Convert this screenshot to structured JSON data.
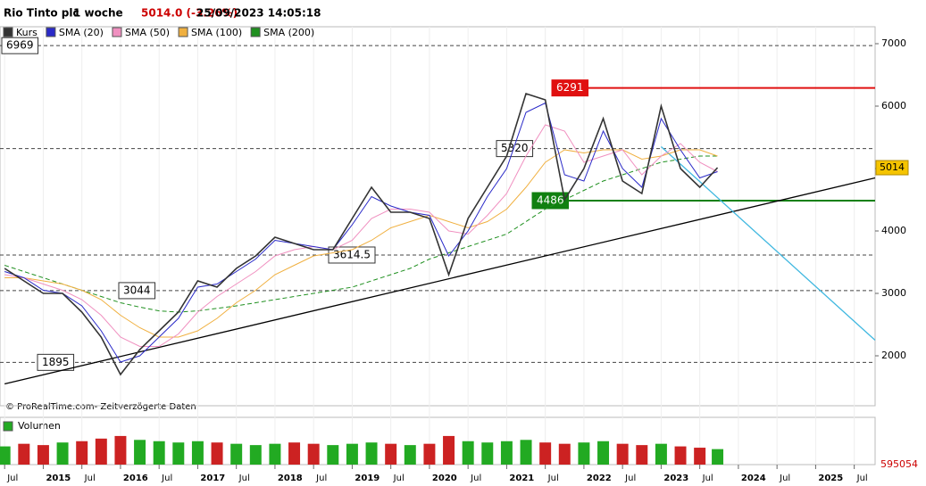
{
  "chart_data": {
    "type": "line",
    "title": "Rio Tinto plc",
    "period": "1 woche",
    "last_change": "5014.0 (-3.26%)",
    "timestamp": "25/09/2023 14:05:18",
    "credit": "© ProRealTime.com- Zeitverzögerte Daten",
    "volume_title": "Volumen",
    "x": [
      2014.5,
      2014.75,
      2015.0,
      2015.25,
      2015.5,
      2015.75,
      2016.0,
      2016.25,
      2016.5,
      2016.75,
      2017.0,
      2017.25,
      2017.5,
      2017.75,
      2018.0,
      2018.25,
      2018.5,
      2018.75,
      2019.0,
      2019.25,
      2019.5,
      2019.75,
      2020.0,
      2020.25,
      2020.5,
      2020.75,
      2021.0,
      2021.25,
      2021.5,
      2021.75,
      2022.0,
      2022.25,
      2022.5,
      2022.75,
      2023.0,
      2023.25,
      2023.5,
      2023.73
    ],
    "series": [
      {
        "name": "Kurs",
        "color": "#333333",
        "values": [
          3400,
          3200,
          3000,
          3000,
          2700,
          2300,
          1700,
          2100,
          2400,
          2700,
          3200,
          3100,
          3400,
          3600,
          3900,
          3800,
          3700,
          3700,
          4200,
          4700,
          4300,
          4300,
          4200,
          3300,
          4200,
          4700,
          5200,
          6200,
          6100,
          4500,
          5000,
          5800,
          4800,
          4600,
          6000,
          5000,
          4700,
          5014
        ]
      },
      {
        "name": "SMA (20)",
        "color": "#2a2ac8",
        "values": [
          3350,
          3250,
          3050,
          3000,
          2800,
          2400,
          1900,
          2000,
          2300,
          2600,
          3100,
          3150,
          3350,
          3550,
          3850,
          3800,
          3750,
          3700,
          4100,
          4550,
          4400,
          4300,
          4250,
          3600,
          4000,
          4550,
          5000,
          5900,
          6050,
          4900,
          4800,
          5600,
          5000,
          4700,
          5800,
          5300,
          4850,
          4950
        ]
      },
      {
        "name": "SMA (50)",
        "color": "#f090c0",
        "values": [
          3300,
          3250,
          3150,
          3050,
          2900,
          2650,
          2300,
          2150,
          2150,
          2350,
          2700,
          2950,
          3150,
          3350,
          3600,
          3700,
          3750,
          3700,
          3850,
          4200,
          4350,
          4350,
          4300,
          4000,
          3950,
          4250,
          4600,
          5200,
          5700,
          5600,
          5100,
          5200,
          5300,
          4900,
          5200,
          5400,
          5100,
          4950
        ]
      },
      {
        "name": "SMA (100)",
        "color": "#f0b040",
        "values": [
          3250,
          3250,
          3200,
          3150,
          3050,
          2900,
          2650,
          2450,
          2300,
          2300,
          2400,
          2600,
          2850,
          3050,
          3300,
          3450,
          3600,
          3650,
          3700,
          3850,
          4050,
          4150,
          4250,
          4150,
          4050,
          4150,
          4350,
          4700,
          5100,
          5300,
          5250,
          5300,
          5300,
          5150,
          5200,
          5300,
          5300,
          5200
        ]
      },
      {
        "name": "SMA (200)",
        "color": "#209020",
        "dashed": true,
        "values": [
          3450,
          3350,
          3250,
          3150,
          3050,
          2950,
          2850,
          2780,
          2720,
          2700,
          2720,
          2760,
          2800,
          2850,
          2900,
          2950,
          3000,
          3050,
          3100,
          3200,
          3300,
          3400,
          3550,
          3650,
          3750,
          3850,
          3950,
          4150,
          4350,
          4500,
          4650,
          4800,
          4900,
          5000,
          5100,
          5150,
          5200,
          5200
        ]
      }
    ],
    "volume": {
      "color_up": "#22aa22",
      "color_down": "#cc2222",
      "values": [
        700000,
        800000,
        750000,
        850000,
        900000,
        1000000,
        1100000,
        950000,
        900000,
        850000,
        900000,
        850000,
        800000,
        750000,
        800000,
        850000,
        800000,
        750000,
        800000,
        850000,
        800000,
        750000,
        800000,
        1100000,
        900000,
        850000,
        900000,
        950000,
        850000,
        800000,
        850000,
        900000,
        800000,
        750000,
        800000,
        700000,
        650000,
        595054
      ]
    },
    "levels": {
      "values": [
        6969,
        6291,
        5320,
        4486,
        3614.5,
        3044,
        1895
      ],
      "colors": [
        "#000000",
        "#e01010",
        "#000000",
        "#108010",
        "#000000",
        "#000000",
        "#000000"
      ]
    },
    "trendlines": [
      {
        "color": "#000000",
        "x": [
          2014.5,
          2025.77
        ],
        "y": [
          1550,
          4850
        ]
      },
      {
        "color": "#40b8e0",
        "x": [
          2023.0,
          2025.77
        ],
        "y": [
          5350,
          2250
        ]
      }
    ],
    "last_price": 5014,
    "xlim": [
      2014.44,
      2025.77
    ],
    "ylim": [
      1200,
      7100
    ],
    "yticks": [
      2000,
      3000,
      4000,
      5000,
      6000,
      7000
    ],
    "xticks": [
      {
        "value": 2014.5,
        "label": "Jul"
      },
      2015,
      {
        "value": 2015.5,
        "label": "Jul"
      },
      2016,
      {
        "value": 2016.5,
        "label": "Jul"
      },
      2017,
      {
        "value": 2017.5,
        "label": "Jul"
      },
      2018,
      {
        "value": 2018.5,
        "label": "Jul"
      },
      2019,
      {
        "value": 2019.5,
        "label": "Jul"
      },
      2020,
      {
        "value": 2020.5,
        "label": "Jul"
      },
      2021,
      {
        "value": 2021.5,
        "label": "Jul"
      },
      2022,
      {
        "value": 2022.5,
        "label": "Jul"
      },
      2023,
      {
        "value": 2023.5,
        "label": "Jul"
      },
      2024,
      {
        "value": 2024.5,
        "label": "Jul"
      },
      2025,
      {
        "value": 2025.5,
        "label": "Jul"
      }
    ],
    "vlim": [
      0,
      1200000
    ]
  }
}
